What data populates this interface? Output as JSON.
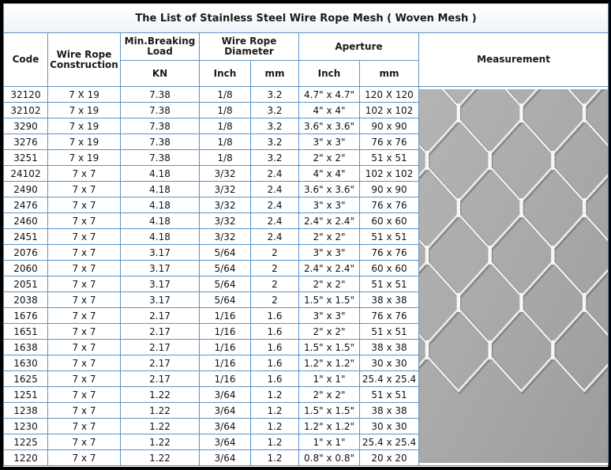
{
  "title": "The List of Stainless Steel Wire Rope Mesh ( Woven Mesh )",
  "headers": {
    "code": "Code",
    "construction": "Wire Rope Construction",
    "load": "Min.Breaking Load",
    "load_unit": "KN",
    "diameter": "Wire Rope Diameter",
    "diameter_inch": "Inch",
    "diameter_mm": "mm",
    "aperture": "Aperture",
    "aperture_inch": "Inch",
    "aperture_mm": "mm",
    "measurement": "Measurement"
  },
  "rows": [
    {
      "code": "32120",
      "construction": "7 X 19",
      "load": "7.38",
      "dia_inch": "1/8",
      "dia_mm": "3.2",
      "ap_inch": "4.7\" x 4.7\"",
      "ap_mm": "120 X 120"
    },
    {
      "code": "32102",
      "construction": "7 x 19",
      "load": "7.38",
      "dia_inch": "1/8",
      "dia_mm": "3.2",
      "ap_inch": "4\" x 4\"",
      "ap_mm": "102 x 102"
    },
    {
      "code": "3290",
      "construction": "7 x 19",
      "load": "7.38",
      "dia_inch": "1/8",
      "dia_mm": "3.2",
      "ap_inch": "3.6\" x 3.6\"",
      "ap_mm": "90 x 90"
    },
    {
      "code": "3276",
      "construction": "7 x 19",
      "load": "7.38",
      "dia_inch": "1/8",
      "dia_mm": "3.2",
      "ap_inch": "3\" x 3\"",
      "ap_mm": "76 x 76"
    },
    {
      "code": "3251",
      "construction": "7 x 19",
      "load": "7.38",
      "dia_inch": "1/8",
      "dia_mm": "3.2",
      "ap_inch": "2\" x 2\"",
      "ap_mm": "51 x 51"
    },
    {
      "code": "24102",
      "construction": "7 x 7",
      "load": "4.18",
      "dia_inch": "3/32",
      "dia_mm": "2.4",
      "ap_inch": "4\" x 4\"",
      "ap_mm": "102 x 102"
    },
    {
      "code": "2490",
      "construction": "7 x 7",
      "load": "4.18",
      "dia_inch": "3/32",
      "dia_mm": "2.4",
      "ap_inch": "3.6\" x 3.6\"",
      "ap_mm": "90 x 90"
    },
    {
      "code": "2476",
      "construction": "7 x 7",
      "load": "4.18",
      "dia_inch": "3/32",
      "dia_mm": "2.4",
      "ap_inch": "3\" x 3\"",
      "ap_mm": "76 x 76"
    },
    {
      "code": "2460",
      "construction": "7 x 7",
      "load": "4.18",
      "dia_inch": "3/32",
      "dia_mm": "2.4",
      "ap_inch": "2.4\" x 2.4\"",
      "ap_mm": "60 x 60"
    },
    {
      "code": "2451",
      "construction": "7 x 7",
      "load": "4.18",
      "dia_inch": "3/32",
      "dia_mm": "2.4",
      "ap_inch": "2\" x 2\"",
      "ap_mm": "51 x 51"
    },
    {
      "code": "2076",
      "construction": "7 x 7",
      "load": "3.17",
      "dia_inch": "5/64",
      "dia_mm": "2",
      "ap_inch": "3\" x 3\"",
      "ap_mm": "76 x 76"
    },
    {
      "code": "2060",
      "construction": "7 x 7",
      "load": "3.17",
      "dia_inch": "5/64",
      "dia_mm": "2",
      "ap_inch": "2.4\" x 2.4\"",
      "ap_mm": "60 x 60"
    },
    {
      "code": "2051",
      "construction": "7 x 7",
      "load": "3.17",
      "dia_inch": "5/64",
      "dia_mm": "2",
      "ap_inch": "2\" x 2\"",
      "ap_mm": "51 x 51"
    },
    {
      "code": "2038",
      "construction": "7 x 7",
      "load": "3.17",
      "dia_inch": "5/64",
      "dia_mm": "2",
      "ap_inch": "1.5\" x 1.5\"",
      "ap_mm": "38 x 38"
    },
    {
      "code": "1676",
      "construction": "7 x 7",
      "load": "2.17",
      "dia_inch": "1/16",
      "dia_mm": "1.6",
      "ap_inch": "3\" x 3\"",
      "ap_mm": "76 x 76"
    },
    {
      "code": "1651",
      "construction": "7 x 7",
      "load": "2.17",
      "dia_inch": "1/16",
      "dia_mm": "1.6",
      "ap_inch": "2\" x 2\"",
      "ap_mm": "51 x 51"
    },
    {
      "code": "1638",
      "construction": "7 x 7",
      "load": "2.17",
      "dia_inch": "1/16",
      "dia_mm": "1.6",
      "ap_inch": "1.5\" x 1.5\"",
      "ap_mm": "38 x 38"
    },
    {
      "code": "1630",
      "construction": "7 x 7",
      "load": "2.17",
      "dia_inch": "1/16",
      "dia_mm": "1.6",
      "ap_inch": "1.2\" x 1.2\"",
      "ap_mm": "30 x 30"
    },
    {
      "code": "1625",
      "construction": "7 x 7",
      "load": "2.17",
      "dia_inch": "1/16",
      "dia_mm": "1.6",
      "ap_inch": "1\" x 1\"",
      "ap_mm": "25.4 x 25.4"
    },
    {
      "code": "1251",
      "construction": "7 x 7",
      "load": "1.22",
      "dia_inch": "3/64",
      "dia_mm": "1.2",
      "ap_inch": "2\" x 2\"",
      "ap_mm": "51 x 51"
    },
    {
      "code": "1238",
      "construction": "7 x 7",
      "load": "1.22",
      "dia_inch": "3/64",
      "dia_mm": "1.2",
      "ap_inch": "1.5\" x 1.5\"",
      "ap_mm": "38 x 38"
    },
    {
      "code": "1230",
      "construction": "7 x 7",
      "load": "1.22",
      "dia_inch": "3/64",
      "dia_mm": "1.2",
      "ap_inch": "1.2\" x 1.2\"",
      "ap_mm": "30 x 30"
    },
    {
      "code": "1225",
      "construction": "7 x 7",
      "load": "1.22",
      "dia_inch": "3/64",
      "dia_mm": "1.2",
      "ap_inch": "1\" x 1\"",
      "ap_mm": "25.4 x 25.4"
    },
    {
      "code": "1220",
      "construction": "7 x 7",
      "load": "1.22",
      "dia_inch": "3/64",
      "dia_mm": "1.2",
      "ap_inch": "0.8\" x 0.8\"",
      "ap_mm": "20 x 20"
    }
  ],
  "colors": {
    "border": "#5b93c7",
    "mesh_background": "#a9a9a9",
    "wire": "#ececec"
  }
}
